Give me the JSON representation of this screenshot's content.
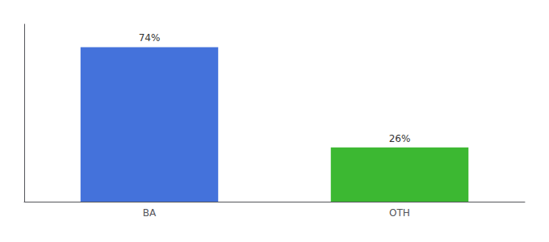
{
  "chart_data": {
    "type": "bar",
    "categories": [
      "BA",
      "OTH"
    ],
    "values": [
      74,
      26
    ],
    "value_labels": [
      "74%",
      "26%"
    ],
    "colors": [
      "#4472db",
      "#3cb832"
    ],
    "ylim": [
      0,
      85
    ],
    "grid": false,
    "data_labels": true,
    "tick_labels": "x"
  }
}
